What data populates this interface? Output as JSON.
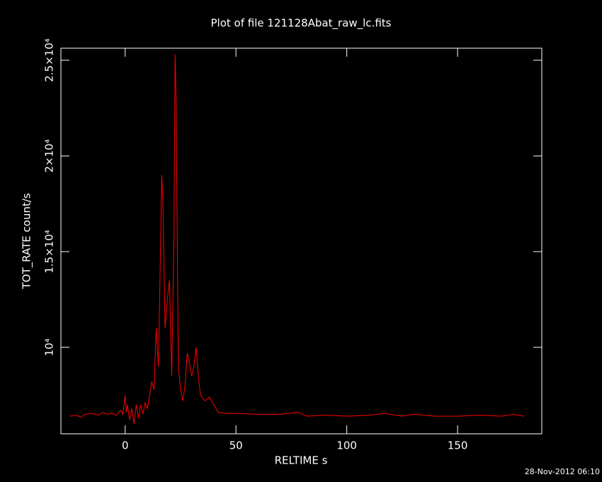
{
  "chart_data": {
    "type": "line",
    "title": "Plot of file 121128Abat_raw_lc.fits",
    "x_label": "RELTIME  s",
    "y_label": "TOT_RATE  count/s",
    "timestamp": "28-Nov-2012 06:10",
    "color": "#ff0000",
    "xlim": [
      -29,
      188
    ],
    "ylim": [
      5480,
      25630
    ],
    "xticks": [
      0,
      50,
      100,
      150
    ],
    "yticks": [
      {
        "value": 10000,
        "label": "10⁴"
      },
      {
        "value": 15000,
        "label": "1.5×10⁴"
      },
      {
        "value": 20000,
        "label": "2×10⁴"
      },
      {
        "value": 25000,
        "label": "2.5×10⁴"
      }
    ],
    "x": [
      -25,
      -22,
      -20,
      -18,
      -15,
      -12,
      -10,
      -8,
      -6,
      -4,
      -2,
      -1,
      0,
      0.5,
      1,
      2,
      3,
      4,
      5,
      6,
      7,
      8,
      9,
      10,
      11,
      12,
      13,
      14,
      15,
      16,
      16.5,
      17,
      18,
      19,
      20,
      21,
      22,
      22.5,
      23,
      23.5,
      24,
      25,
      26,
      27,
      28,
      29,
      30,
      31,
      32,
      33,
      34,
      36,
      38,
      40,
      42,
      45,
      50,
      60,
      70,
      78,
      82,
      90,
      100,
      110,
      117,
      125,
      130,
      140,
      150,
      160,
      170,
      175,
      180
    ],
    "values": [
      6400,
      6450,
      6350,
      6500,
      6550,
      6450,
      6600,
      6500,
      6550,
      6450,
      6700,
      6500,
      7500,
      6600,
      7000,
      6200,
      6800,
      6000,
      7000,
      6300,
      7000,
      6500,
      7100,
      6800,
      7500,
      8200,
      7800,
      11000,
      9000,
      15500,
      19000,
      17700,
      11000,
      12500,
      13500,
      8500,
      15600,
      25300,
      22700,
      15600,
      9000,
      7800,
      7200,
      8000,
      9700,
      9200,
      8500,
      9000,
      10000,
      8500,
      7500,
      7200,
      7400,
      7000,
      6600,
      6550,
      6550,
      6500,
      6500,
      6600,
      6400,
      6450,
      6400,
      6450,
      6550,
      6400,
      6500,
      6400,
      6400,
      6450,
      6400,
      6500,
      6400
    ]
  }
}
